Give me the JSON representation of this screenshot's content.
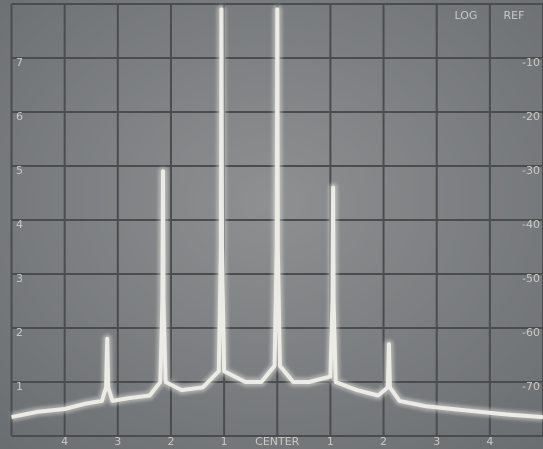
{
  "chart_data": {
    "type": "line",
    "annotations": [
      "LOG",
      "REF"
    ],
    "x": [
      -5,
      -4.5,
      -4,
      -3.6,
      -3.3,
      -3.22,
      -3.2,
      -3.18,
      -3.1,
      -2.8,
      -2.4,
      -2.2,
      -2.16,
      -2.15,
      -2.14,
      -2.1,
      -1.8,
      -1.4,
      -1.1,
      -1.06,
      -1.05,
      -1.04,
      -1.0,
      -0.6,
      -0.3,
      -0.05,
      -0.01,
      0,
      0.01,
      0.05,
      0.3,
      0.6,
      1.0,
      1.04,
      1.05,
      1.06,
      1.1,
      1.5,
      1.9,
      2.08,
      2.1,
      2.12,
      2.3,
      2.8,
      3.3,
      3.8,
      4.3,
      5
    ],
    "series": [
      {
        "color": "#ecebe6",
        "values": [
          0.35,
          0.45,
          0.5,
          0.6,
          0.65,
          0.9,
          1.8,
          0.9,
          0.65,
          0.7,
          0.75,
          1.0,
          2.5,
          4.9,
          2.5,
          1.0,
          0.85,
          0.9,
          1.2,
          3.5,
          7.9,
          3.5,
          1.2,
          1.0,
          1.0,
          1.3,
          3.5,
          7.9,
          3.5,
          1.3,
          1.0,
          1.0,
          1.1,
          2.5,
          4.6,
          2.5,
          1.0,
          0.85,
          0.75,
          0.9,
          1.7,
          0.9,
          0.65,
          0.55,
          0.5,
          0.45,
          0.4,
          0.35
        ]
      }
    ],
    "xlim": [
      -5,
      5
    ],
    "xticks": [
      {
        "value": -4,
        "label": "4"
      },
      {
        "value": -3,
        "label": "3"
      },
      {
        "value": -2,
        "label": "2"
      },
      {
        "value": -1,
        "label": "1"
      },
      {
        "value": 0,
        "label": "CENTER"
      },
      {
        "value": 1,
        "label": "1"
      },
      {
        "value": 2,
        "label": "2"
      },
      {
        "value": 3,
        "label": "3"
      },
      {
        "value": 4,
        "label": "4"
      }
    ],
    "ylim": [
      0,
      8
    ],
    "yticks": [
      1,
      2,
      3,
      4,
      5,
      6,
      7
    ],
    "y2lim": [
      -80,
      0
    ],
    "y2ticks": [
      -70,
      -60,
      -50,
      -40,
      -30,
      -20,
      -10
    ],
    "grid": true
  }
}
